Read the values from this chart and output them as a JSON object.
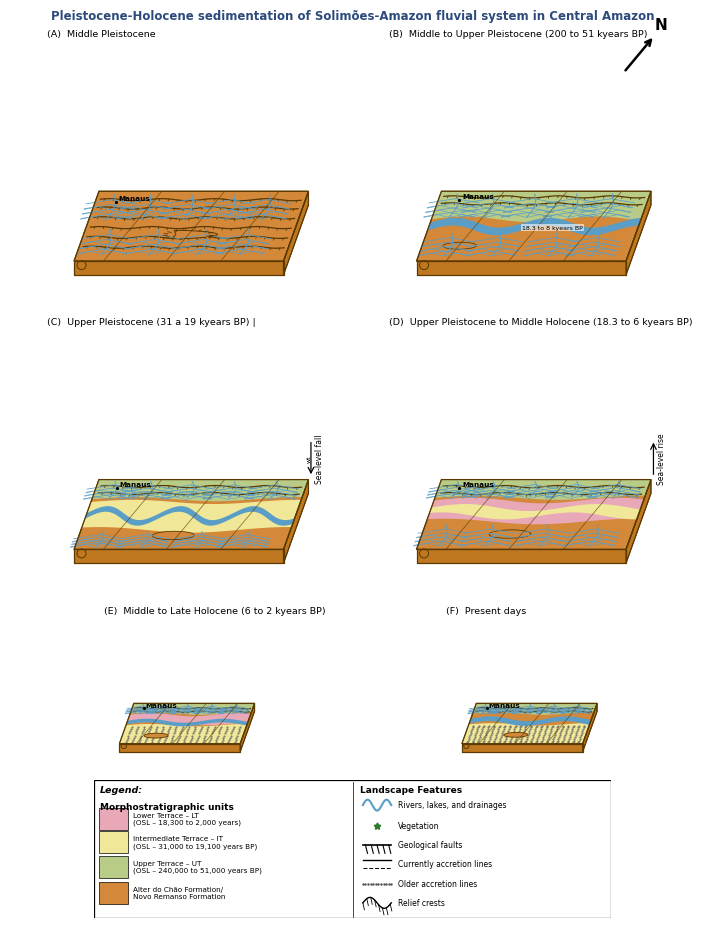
{
  "title": "Pleistocene-Holocene sedimentation of Solimões-Amazon fluvial system in Central Amazon",
  "title_fontsize": 8.5,
  "title_color": "#2c4a7c",
  "background_color": "#ffffff",
  "panel_labels": [
    "(A)  Middle Pleistocene",
    "(B)  Middle to Upper Pleistocene (200 to 51 kyears BP)",
    "(C)  Upper Pleistocene (31 a 19 kyears BP) |",
    "(D)  Upper Pleistocene to Middle Holocene (18.3 to 6 kyears BP)",
    "(E)  Middle to Late Holocene (6 to 2 kyears BP)",
    "(F)  Present days"
  ],
  "color_orange": "#D4883A",
  "color_green_light": "#B8CC88",
  "color_pink": "#E8A8B8",
  "color_yellow_light": "#F0E898",
  "color_blue": "#5A9EC8",
  "color_dark_brown": "#8B5E1A",
  "color_side": "#C07820",
  "legend_items_left": [
    {
      "label": "Lower Terrace – LT\n(OSL – 18,300 to 2,000 years)",
      "color": "#E8A8B8"
    },
    {
      "label": "Intermediate Terrace – IT\n(OSL – 31,000 to 19,100 years BP)",
      "color": "#F0E898"
    },
    {
      "label": "Upper Terrace – UT\n(OSL – 240,000 to 51,000 years BP)",
      "color": "#B8CC88"
    },
    {
      "label": "Alter do Chão Formation/\nNovo Remanso Formation",
      "color": "#D4883A"
    }
  ],
  "legend_items_right": [
    {
      "label": "Rivers, lakes, and drainages"
    },
    {
      "label": "Vegetation"
    },
    {
      "label": "Geological faults"
    },
    {
      "label": "Currently accretion lines"
    },
    {
      "label": "Older accretion lines"
    },
    {
      "label": "Relief crests"
    }
  ]
}
